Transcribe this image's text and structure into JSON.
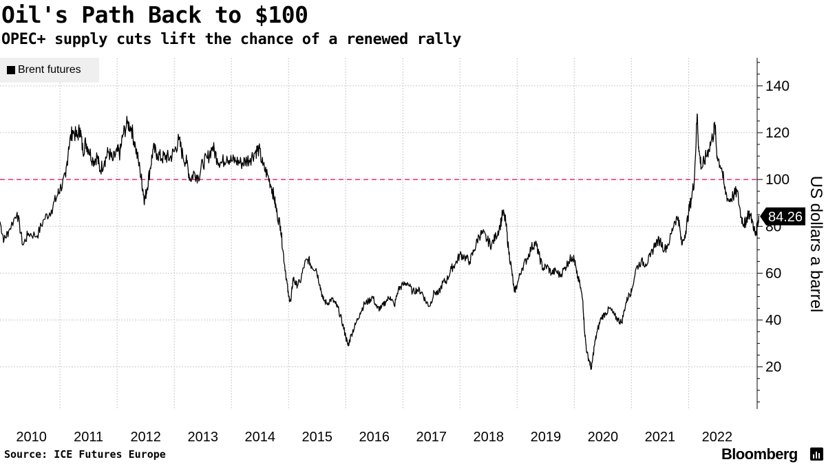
{
  "colors": {
    "series": "#000000",
    "reference_line": "#e8398f",
    "grid": "#c8c8c8",
    "last_value_badge": "#000000",
    "legend_bg": "#efefef"
  },
  "chart_data": {
    "type": "line",
    "title": "Oil's Path Back to $100",
    "subtitle": "OPEC+ supply cuts lift the chance of a renewed rally",
    "xlabel": "",
    "ylabel": "US dollars a barrel",
    "legend": [
      "Brent futures"
    ],
    "legend_placement": "top-left",
    "source": "Source: ICE Futures Europe",
    "brand": "Bloomberg",
    "x_ticks": [
      "2010",
      "2011",
      "2012",
      "2013",
      "2014",
      "2015",
      "2016",
      "2017",
      "2018",
      "2019",
      "2020",
      "2021",
      "2022"
    ],
    "y_ticks": [
      20,
      40,
      60,
      80,
      100,
      120,
      140
    ],
    "xlim": [
      2009.95,
      2023.2
    ],
    "ylim": [
      2,
      152
    ],
    "reference_line": {
      "y": 100,
      "style": "dashed"
    },
    "last_value_label": "84.26",
    "series": [
      {
        "name": "Brent futures",
        "points": [
          [
            2009.95,
            82
          ],
          [
            2010.02,
            74
          ],
          [
            2010.1,
            78
          ],
          [
            2010.25,
            86
          ],
          [
            2010.35,
            72
          ],
          [
            2010.45,
            77
          ],
          [
            2010.6,
            76
          ],
          [
            2010.72,
            83
          ],
          [
            2010.85,
            87
          ],
          [
            2010.95,
            93
          ],
          [
            2011.0,
            96
          ],
          [
            2011.1,
            101
          ],
          [
            2011.15,
            114
          ],
          [
            2011.22,
            121
          ],
          [
            2011.3,
            118
          ],
          [
            2011.35,
            122
          ],
          [
            2011.4,
            112
          ],
          [
            2011.45,
            116
          ],
          [
            2011.5,
            113
          ],
          [
            2011.58,
            108
          ],
          [
            2011.65,
            110
          ],
          [
            2011.7,
            104
          ],
          [
            2011.78,
            108
          ],
          [
            2011.85,
            112
          ],
          [
            2011.92,
            108
          ],
          [
            2012.0,
            112
          ],
          [
            2012.05,
            111
          ],
          [
            2012.1,
            119
          ],
          [
            2012.18,
            124
          ],
          [
            2012.25,
            122
          ],
          [
            2012.32,
            114
          ],
          [
            2012.4,
            104
          ],
          [
            2012.45,
            96
          ],
          [
            2012.48,
            91
          ],
          [
            2012.52,
            96
          ],
          [
            2012.58,
            105
          ],
          [
            2012.63,
            113
          ],
          [
            2012.7,
            111
          ],
          [
            2012.78,
            109
          ],
          [
            2012.85,
            110
          ],
          [
            2012.92,
            109
          ],
          [
            2013.0,
            112
          ],
          [
            2013.08,
            117
          ],
          [
            2013.15,
            110
          ],
          [
            2013.22,
            107
          ],
          [
            2013.28,
            100
          ],
          [
            2013.35,
            103
          ],
          [
            2013.42,
            101
          ],
          [
            2013.5,
            107
          ],
          [
            2013.58,
            109
          ],
          [
            2013.67,
            114
          ],
          [
            2013.75,
            109
          ],
          [
            2013.83,
            107
          ],
          [
            2013.92,
            110
          ],
          [
            2014.0,
            108
          ],
          [
            2014.08,
            108
          ],
          [
            2014.17,
            107
          ],
          [
            2014.25,
            108
          ],
          [
            2014.33,
            109
          ],
          [
            2014.42,
            112
          ],
          [
            2014.48,
            113
          ],
          [
            2014.55,
            106
          ],
          [
            2014.63,
            102
          ],
          [
            2014.7,
            97
          ],
          [
            2014.75,
            92
          ],
          [
            2014.8,
            85
          ],
          [
            2014.86,
            80
          ],
          [
            2014.9,
            70
          ],
          [
            2014.95,
            60
          ],
          [
            2015.0,
            50
          ],
          [
            2015.04,
            48
          ],
          [
            2015.08,
            58
          ],
          [
            2015.13,
            55
          ],
          [
            2015.2,
            56
          ],
          [
            2015.28,
            64
          ],
          [
            2015.35,
            66
          ],
          [
            2015.4,
            63
          ],
          [
            2015.48,
            62
          ],
          [
            2015.55,
            55
          ],
          [
            2015.6,
            49
          ],
          [
            2015.67,
            47
          ],
          [
            2015.75,
            49
          ],
          [
            2015.82,
            47
          ],
          [
            2015.88,
            44
          ],
          [
            2015.95,
            38
          ],
          [
            2016.0,
            33
          ],
          [
            2016.04,
            29
          ],
          [
            2016.1,
            34
          ],
          [
            2016.17,
            38
          ],
          [
            2016.25,
            43
          ],
          [
            2016.33,
            47
          ],
          [
            2016.4,
            48
          ],
          [
            2016.47,
            50
          ],
          [
            2016.55,
            45
          ],
          [
            2016.62,
            45
          ],
          [
            2016.7,
            48
          ],
          [
            2016.78,
            50
          ],
          [
            2016.85,
            46
          ],
          [
            2016.92,
            53
          ],
          [
            2017.0,
            55
          ],
          [
            2017.08,
            56
          ],
          [
            2017.17,
            52
          ],
          [
            2017.25,
            53
          ],
          [
            2017.33,
            52
          ],
          [
            2017.4,
            48
          ],
          [
            2017.47,
            46
          ],
          [
            2017.55,
            52
          ],
          [
            2017.62,
            51
          ],
          [
            2017.7,
            56
          ],
          [
            2017.77,
            57
          ],
          [
            2017.85,
            62
          ],
          [
            2017.92,
            64
          ],
          [
            2018.0,
            68
          ],
          [
            2018.08,
            67
          ],
          [
            2018.17,
            65
          ],
          [
            2018.25,
            70
          ],
          [
            2018.33,
            76
          ],
          [
            2018.4,
            77
          ],
          [
            2018.48,
            74
          ],
          [
            2018.55,
            72
          ],
          [
            2018.63,
            76
          ],
          [
            2018.7,
            80
          ],
          [
            2018.75,
            86
          ],
          [
            2018.8,
            82
          ],
          [
            2018.85,
            70
          ],
          [
            2018.9,
            62
          ],
          [
            2018.95,
            52
          ],
          [
            2019.0,
            55
          ],
          [
            2019.08,
            62
          ],
          [
            2019.17,
            66
          ],
          [
            2019.25,
            71
          ],
          [
            2019.32,
            73
          ],
          [
            2019.38,
            68
          ],
          [
            2019.45,
            62
          ],
          [
            2019.52,
            63
          ],
          [
            2019.6,
            60
          ],
          [
            2019.68,
            61
          ],
          [
            2019.75,
            59
          ],
          [
            2019.83,
            62
          ],
          [
            2019.9,
            65
          ],
          [
            2019.96,
            67
          ],
          [
            2020.0,
            66
          ],
          [
            2020.04,
            60
          ],
          [
            2020.1,
            55
          ],
          [
            2020.15,
            48
          ],
          [
            2020.18,
            35
          ],
          [
            2020.22,
            26
          ],
          [
            2020.27,
            22
          ],
          [
            2020.3,
            19
          ],
          [
            2020.35,
            29
          ],
          [
            2020.4,
            35
          ],
          [
            2020.47,
            41
          ],
          [
            2020.55,
            43
          ],
          [
            2020.62,
            45
          ],
          [
            2020.7,
            42
          ],
          [
            2020.77,
            40
          ],
          [
            2020.83,
            39
          ],
          [
            2020.9,
            47
          ],
          [
            2020.96,
            51
          ],
          [
            2021.0,
            52
          ],
          [
            2021.08,
            62
          ],
          [
            2021.17,
            65
          ],
          [
            2021.25,
            64
          ],
          [
            2021.33,
            67
          ],
          [
            2021.42,
            73
          ],
          [
            2021.5,
            74
          ],
          [
            2021.58,
            70
          ],
          [
            2021.67,
            74
          ],
          [
            2021.75,
            82
          ],
          [
            2021.82,
            84
          ],
          [
            2021.88,
            72
          ],
          [
            2021.95,
            78
          ],
          [
            2022.0,
            86
          ],
          [
            2022.05,
            92
          ],
          [
            2022.1,
            100
          ],
          [
            2022.15,
            128
          ],
          [
            2022.18,
            112
          ],
          [
            2022.23,
            105
          ],
          [
            2022.28,
            108
          ],
          [
            2022.35,
            113
          ],
          [
            2022.42,
            118
          ],
          [
            2022.46,
            123
          ],
          [
            2022.5,
            110
          ],
          [
            2022.58,
            105
          ],
          [
            2022.63,
            96
          ],
          [
            2022.7,
            91
          ],
          [
            2022.78,
            93
          ],
          [
            2022.85,
            95
          ],
          [
            2022.92,
            84
          ],
          [
            2022.97,
            81
          ],
          [
            2023.0,
            82
          ],
          [
            2023.05,
            86
          ],
          [
            2023.12,
            82
          ],
          [
            2023.17,
            76
          ],
          [
            2023.2,
            80
          ],
          [
            2023.23,
            84.26
          ]
        ]
      }
    ]
  }
}
